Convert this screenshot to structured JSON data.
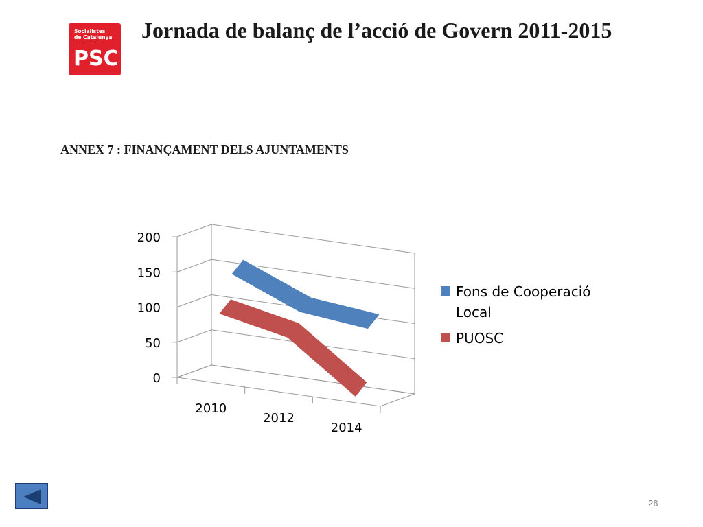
{
  "header": {
    "logo_text_small": "Socialistes\nde Catalunya",
    "logo_text_big": "PSC",
    "logo_color": "#e0202a",
    "title": "Jornada de balanç de l’acció de Govern 2011-2015"
  },
  "subtitle": "ANNEX 7 : FINANÇAMENT DELS AJUNTAMENTS",
  "chart_data": {
    "type": "line",
    "style": "3d-ribbon",
    "categories": [
      "2010",
      "2012",
      "2014"
    ],
    "series": [
      {
        "name": "Fons de Cooperació Local",
        "color": "#4f81bd",
        "values": [
          150,
          110,
          100
        ]
      },
      {
        "name": "PUOSC",
        "color": "#c0504d",
        "values": [
          100,
          80,
          10
        ]
      }
    ],
    "yticks": [
      "0",
      "50",
      "100",
      "150",
      "200"
    ],
    "ylim": [
      0,
      200
    ],
    "grid": true,
    "legend": "right"
  },
  "footer": {
    "back_icon": "back-arrow-icon",
    "page_number": "26"
  }
}
